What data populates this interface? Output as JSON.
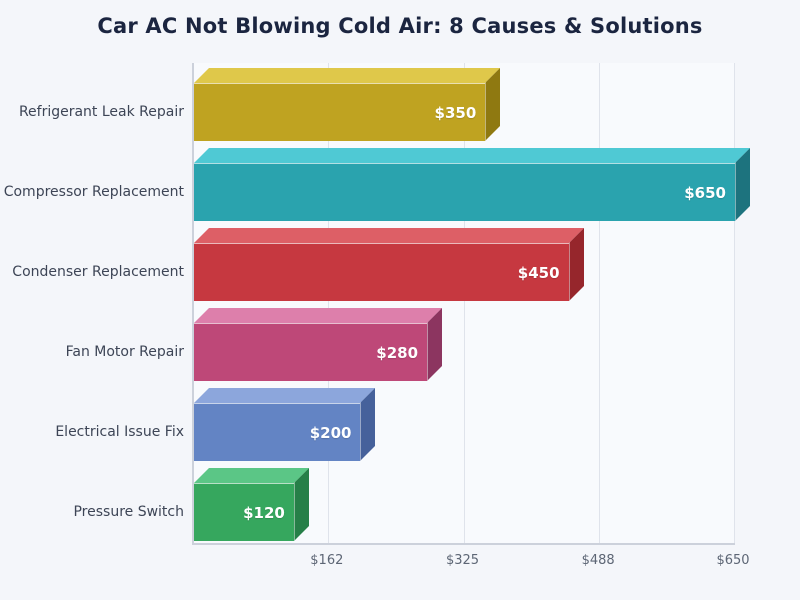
{
  "chart_data": {
    "type": "bar",
    "orientation": "horizontal",
    "bar_style": "3d-extruded",
    "title": "Car AC Not Blowing Cold Air: 8 Causes & Solutions",
    "categories": [
      "Refrigerant Leak Repair",
      "Compressor Replacement",
      "Condenser Replacement",
      "Fan Motor Repair",
      "Electrical Issue Fix",
      "Pressure Switch"
    ],
    "values": [
      350,
      650,
      450,
      280,
      200,
      120
    ],
    "value_labels": [
      "$350",
      "$650",
      "$450",
      "$280",
      "$200",
      "$120"
    ],
    "bar_colors": [
      {
        "front": "#bfa321",
        "top": "#dfc84a",
        "side": "#8f7911"
      },
      {
        "front": "#2aa3ae",
        "top": "#4fc9d4",
        "side": "#1d737e"
      },
      {
        "front": "#c63840",
        "top": "#dd5f66",
        "side": "#96262c"
      },
      {
        "front": "#be4878",
        "top": "#dd7fab",
        "side": "#8c3560"
      },
      {
        "front": "#6384c4",
        "top": "#8ca6dc",
        "side": "#46619b"
      },
      {
        "front": "#36a75e",
        "top": "#5bc686",
        "side": "#267f48"
      }
    ],
    "xlabel": "",
    "ylabel": "",
    "xlim": [
      0,
      650
    ],
    "x_ticks": [
      {
        "value": 162,
        "label": "$162"
      },
      {
        "value": 325,
        "label": "$325"
      },
      {
        "value": 488,
        "label": "$488"
      },
      {
        "value": 650,
        "label": "$650"
      }
    ],
    "grid": true,
    "legend": false
  },
  "colors": {
    "page_bg": "#f4f6fa",
    "plot_bg": "#f8fafd",
    "grid": "#dfe3eb",
    "axis": "#ccd1db",
    "title_text": "#1b2540",
    "category_text": "#3d4556",
    "tick_text": "#5d6675",
    "value_text": "#ffffff"
  }
}
